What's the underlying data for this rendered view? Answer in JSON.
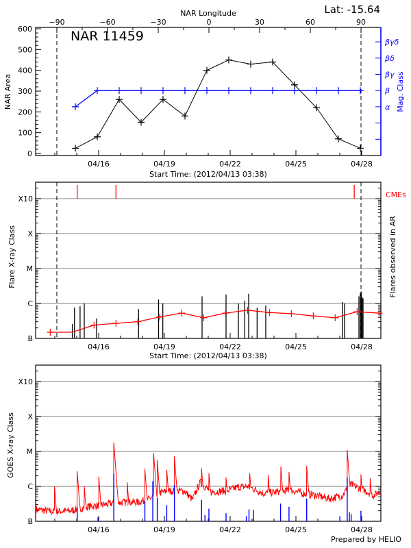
{
  "header": {
    "lat_label": "Lat: -15.64",
    "region_label": "NAR 11459"
  },
  "footer": "Prepared by HELIO",
  "colors": {
    "area": "#000000",
    "mag_class": "#0000ff",
    "cme": "#ff0000",
    "flare": "#000000",
    "goes_long": "#ff0000",
    "goes_short": "#0000ff",
    "grid": "#999999"
  },
  "chart_data": [
    {
      "type": "line",
      "xlabel": "Start Time: (2012/04/13 03:38)",
      "ylabel": "NAR Area",
      "top_axis_label": "NAR Longitude",
      "top_ticks": [
        -90,
        -60,
        -30,
        0,
        30,
        60,
        90
      ],
      "longitude_markers": [
        -90,
        90
      ],
      "x_tick_labels": [
        "04/16",
        "04/19",
        "04/22",
        "04/25",
        "04/28"
      ],
      "xlim": [
        "2012-04-13T03:38",
        "2012-04-28T21:00"
      ],
      "y_ticks": [
        0,
        100,
        200,
        300,
        400,
        500,
        600
      ],
      "ylim": [
        -10,
        610
      ],
      "right_axis_label": "Mag. Class",
      "right_ticks": [
        "",
        "",
        "α",
        "β",
        "βγ",
        "βδ",
        "βγδ"
      ],
      "x": [
        "2012-04-14T22:30",
        "2012-04-15T22:30",
        "2012-04-16T22:30",
        "2012-04-17T22:30",
        "2012-04-18T22:30",
        "2012-04-19T22:30",
        "2012-04-20T22:30",
        "2012-04-21T22:30",
        "2012-04-22T22:30",
        "2012-04-23T22:30",
        "2012-04-24T22:30",
        "2012-04-25T22:30",
        "2012-04-26T22:30",
        "2012-04-27T22:30"
      ],
      "series": [
        {
          "axis": "left",
          "values": [
            25,
            80,
            260,
            150,
            260,
            180,
            400,
            450,
            430,
            440,
            330,
            220,
            70,
            25
          ]
        },
        {
          "axis": "right",
          "values": [
            "α",
            "β",
            "β",
            "β",
            "β",
            "β",
            "β",
            "β",
            "β",
            "β",
            "β",
            "β",
            "β",
            "β"
          ]
        }
      ]
    },
    {
      "type": "bar",
      "xlabel": "Start Time: (2012/04/13 03:38)",
      "ylabel": "Flare X-ray Class",
      "right_axis_label": "Flares observed in AR",
      "cme_label": "CMEs",
      "x_tick_labels": [
        "04/16",
        "04/19",
        "04/22",
        "04/25",
        "04/28"
      ],
      "y_scale": "log",
      "y_ticks": [
        {
          "label": "B",
          "flux": 1e-07
        },
        {
          "label": "C",
          "flux": 1e-06
        },
        {
          "label": "M",
          "flux": 1e-05
        },
        {
          "label": "X",
          "flux": 0.0001
        },
        {
          "label": "X10",
          "flux": 0.001
        }
      ],
      "ylim": [
        1e-07,
        0.003
      ],
      "grid": true,
      "longitude_markers": [
        -90,
        90
      ],
      "flares": [
        [
          "2012-04-14T19:20",
          2.6e-07
        ],
        [
          "2012-04-14T21:36",
          7.6e-07
        ],
        [
          "2012-04-15T03:40",
          8.3e-07
        ],
        [
          "2012-04-15T08:15",
          1e-06
        ],
        [
          "2012-04-15T21:45",
          3.7e-07
        ],
        [
          "2012-04-17T19:43",
          6.9e-07
        ],
        [
          "2012-04-18T17:37",
          1.3e-06
        ],
        [
          "2012-04-18T22:16",
          1e-06
        ],
        [
          "2012-04-20T17:15",
          1.6e-06
        ],
        [
          "2012-04-21T19:30",
          1.8e-06
        ],
        [
          "2012-04-22T09:00",
          1e-06
        ],
        [
          "2012-04-22T16:00",
          1.2e-06
        ],
        [
          "2012-04-22T20:15",
          1.9e-06
        ],
        [
          "2012-04-23T05:30",
          7.6e-07
        ],
        [
          "2012-04-23T15:00",
          8.7e-07
        ],
        [
          "2012-04-27T03:00",
          1.1e-06
        ],
        [
          "2012-04-27T05:15",
          1e-06
        ],
        [
          "2012-04-27T21:00",
          1.6e-06
        ],
        [
          "2012-04-27T22:30",
          2e-06
        ],
        [
          "2012-04-27T23:30",
          2.2e-06
        ],
        [
          "2012-04-28T00:30",
          1.5e-06
        ],
        [
          "2012-04-28T01:30",
          1.4e-06
        ]
      ],
      "cmes": [
        "2012-04-15T00:30",
        "2012-04-16T19:00",
        "2012-04-27T15:50"
      ],
      "background": {
        "x": [
          "2012-04-13T19:00",
          "2012-04-14T19:00",
          "2012-04-15T19:00",
          "2012-04-16T19:00",
          "2012-04-17T19:00",
          "2012-04-18T19:00",
          "2012-04-19T19:00",
          "2012-04-20T19:00",
          "2012-04-21T19:00",
          "2012-04-22T19:00",
          "2012-04-23T19:00",
          "2012-04-24T19:00",
          "2012-04-25T19:00",
          "2012-04-26T19:00",
          "2012-04-27T19:00",
          "2012-04-28T19:00"
        ],
        "values": [
          1.5e-07,
          1.5e-07,
          2.4e-07,
          2.7e-07,
          3e-07,
          4.1e-07,
          5.3e-07,
          3.9e-07,
          5.3e-07,
          6.4e-07,
          5.5e-07,
          5.1e-07,
          4.4e-07,
          3.9e-07,
          5.8e-07,
          5.3e-07
        ],
        "markers": [
          true,
          false,
          true,
          true,
          true,
          true,
          true,
          true,
          true,
          true,
          true,
          true,
          true,
          true,
          true,
          true
        ]
      }
    },
    {
      "type": "line",
      "ylabel": "GOES X-ray Class",
      "x_tick_labels": [
        "04/16",
        "04/19",
        "04/22",
        "04/25",
        "04/28"
      ],
      "y_scale": "log",
      "y_ticks": [
        {
          "label": "B",
          "flux": 1e-07
        },
        {
          "label": "C",
          "flux": 1e-06
        },
        {
          "label": "M",
          "flux": 1e-05
        },
        {
          "label": "X",
          "flux": 0.0001
        },
        {
          "label": "X10",
          "flux": 0.001
        }
      ],
      "ylim": [
        1e-07,
        0.003
      ],
      "grid": true,
      "long_channel_baseline": [
        [
          "2012-04-13T03:38",
          2.2e-07
        ],
        [
          "2012-04-13T21:42",
          1.9e-07
        ],
        [
          "2012-04-14T17:53",
          2e-07
        ],
        [
          "2012-04-15T11:11",
          2.6e-07
        ],
        [
          "2012-04-16T07:23",
          3e-07
        ],
        [
          "2012-04-16T16:02",
          3.3e-07
        ],
        [
          "2012-04-17T03:34",
          3.5e-07
        ],
        [
          "2012-04-17T18:00",
          3.5e-07
        ],
        [
          "2012-04-18T05:33",
          4.1e-07
        ],
        [
          "2012-04-18T17:05",
          6.3e-07
        ],
        [
          "2012-04-19T04:37",
          7.4e-07
        ],
        [
          "2012-04-19T21:55",
          7.4e-07
        ],
        [
          "2012-04-20T06:34",
          4.1e-07
        ],
        [
          "2012-04-20T15:14",
          1.3e-06
        ],
        [
          "2012-04-21T02:46",
          6.9e-07
        ],
        [
          "2012-04-21T20:05",
          7.4e-07
        ],
        [
          "2012-04-22T07:37",
          9.3e-07
        ],
        [
          "2012-04-22T19:09",
          1e-06
        ],
        [
          "2012-04-23T12:27",
          6.3e-07
        ],
        [
          "2012-04-24T02:53",
          6.9e-07
        ],
        [
          "2012-04-24T17:18",
          7.9e-07
        ],
        [
          "2012-04-25T07:40",
          6.3e-07
        ],
        [
          "2012-04-25T22:05",
          5.5e-07
        ],
        [
          "2012-04-26T12:30",
          4.4e-07
        ],
        [
          "2012-04-27T03:00",
          5.5e-07
        ],
        [
          "2012-04-27T11:40",
          1.15e-06
        ],
        [
          "2012-04-28T02:05",
          7.9e-07
        ],
        [
          "2012-04-28T13:36",
          5.5e-07
        ],
        [
          "2012-04-28T22:19",
          7.9e-07
        ]
      ],
      "long_channel_peaks": [
        [
          "2012-04-13T23:43",
          1e-06
        ],
        [
          "2012-04-15T00:32",
          2.7e-06
        ],
        [
          "2012-04-15T08:18",
          1e-06
        ],
        [
          "2012-04-16T00:10",
          1.9e-06
        ],
        [
          "2012-04-16T16:36",
          1.8e-05
        ],
        [
          "2012-04-17T07:19",
          1.3e-06
        ],
        [
          "2012-04-18T02:38",
          3.2e-06
        ],
        [
          "2012-04-18T12:10",
          9.1e-06
        ],
        [
          "2012-04-18T16:12",
          5.6e-06
        ],
        [
          "2012-04-19T02:35",
          3e-06
        ],
        [
          "2012-04-19T10:58",
          7.4e-06
        ],
        [
          "2012-04-20T16:41",
          3.3e-06
        ],
        [
          "2012-04-21T00:45",
          2.4e-06
        ],
        [
          "2012-04-21T19:30",
          1.8e-06
        ],
        [
          "2012-04-22T21:27",
          2.4e-06
        ],
        [
          "2012-04-23T17:38",
          2.1e-06
        ],
        [
          "2012-04-24T07:29",
          3.7e-06
        ],
        [
          "2012-04-24T16:26",
          2.6e-06
        ],
        [
          "2012-04-25T11:46",
          3.9e-06
        ],
        [
          "2012-04-27T08:10",
          1.1e-05
        ],
        [
          "2012-04-27T23:11",
          2.2e-06
        ],
        [
          "2012-04-28T09:17",
          1.7e-06
        ]
      ],
      "short_channel_peaks": [
        [
          "2012-04-15T00:32",
          2.6e-07
        ],
        [
          "2012-04-15T23:18",
          1.3e-07
        ],
        [
          "2012-04-16T16:36",
          2.3e-06
        ],
        [
          "2012-04-18T02:38",
          3.7e-07
        ],
        [
          "2012-04-18T11:18",
          1.4e-06
        ],
        [
          "2012-04-18T16:12",
          4.7e-07
        ],
        [
          "2012-04-19T02:35",
          2.9e-07
        ],
        [
          "2012-04-19T10:58",
          1.1e-06
        ],
        [
          "2012-04-20T16:41",
          4.1e-07
        ],
        [
          "2012-04-20T20:25",
          1.5e-07
        ],
        [
          "2012-04-21T00:45",
          2.3e-07
        ],
        [
          "2012-04-21T19:30",
          1.7e-07
        ],
        [
          "2012-04-22T17:43",
          1.4e-07
        ],
        [
          "2012-04-22T20:36",
          2.2e-07
        ],
        [
          "2012-04-23T01:30",
          2.1e-07
        ],
        [
          "2012-04-24T07:12",
          3.2e-07
        ],
        [
          "2012-04-24T16:26",
          2.6e-07
        ],
        [
          "2012-04-25T11:46",
          4.5e-07
        ],
        [
          "2012-04-27T00:07",
          1.4e-07
        ],
        [
          "2012-04-27T08:10",
          1.8e-06
        ],
        [
          "2012-04-27T10:31",
          1.8e-07
        ],
        [
          "2012-04-27T12:29",
          1.6e-07
        ],
        [
          "2012-04-27T23:11",
          2e-07
        ]
      ]
    }
  ]
}
